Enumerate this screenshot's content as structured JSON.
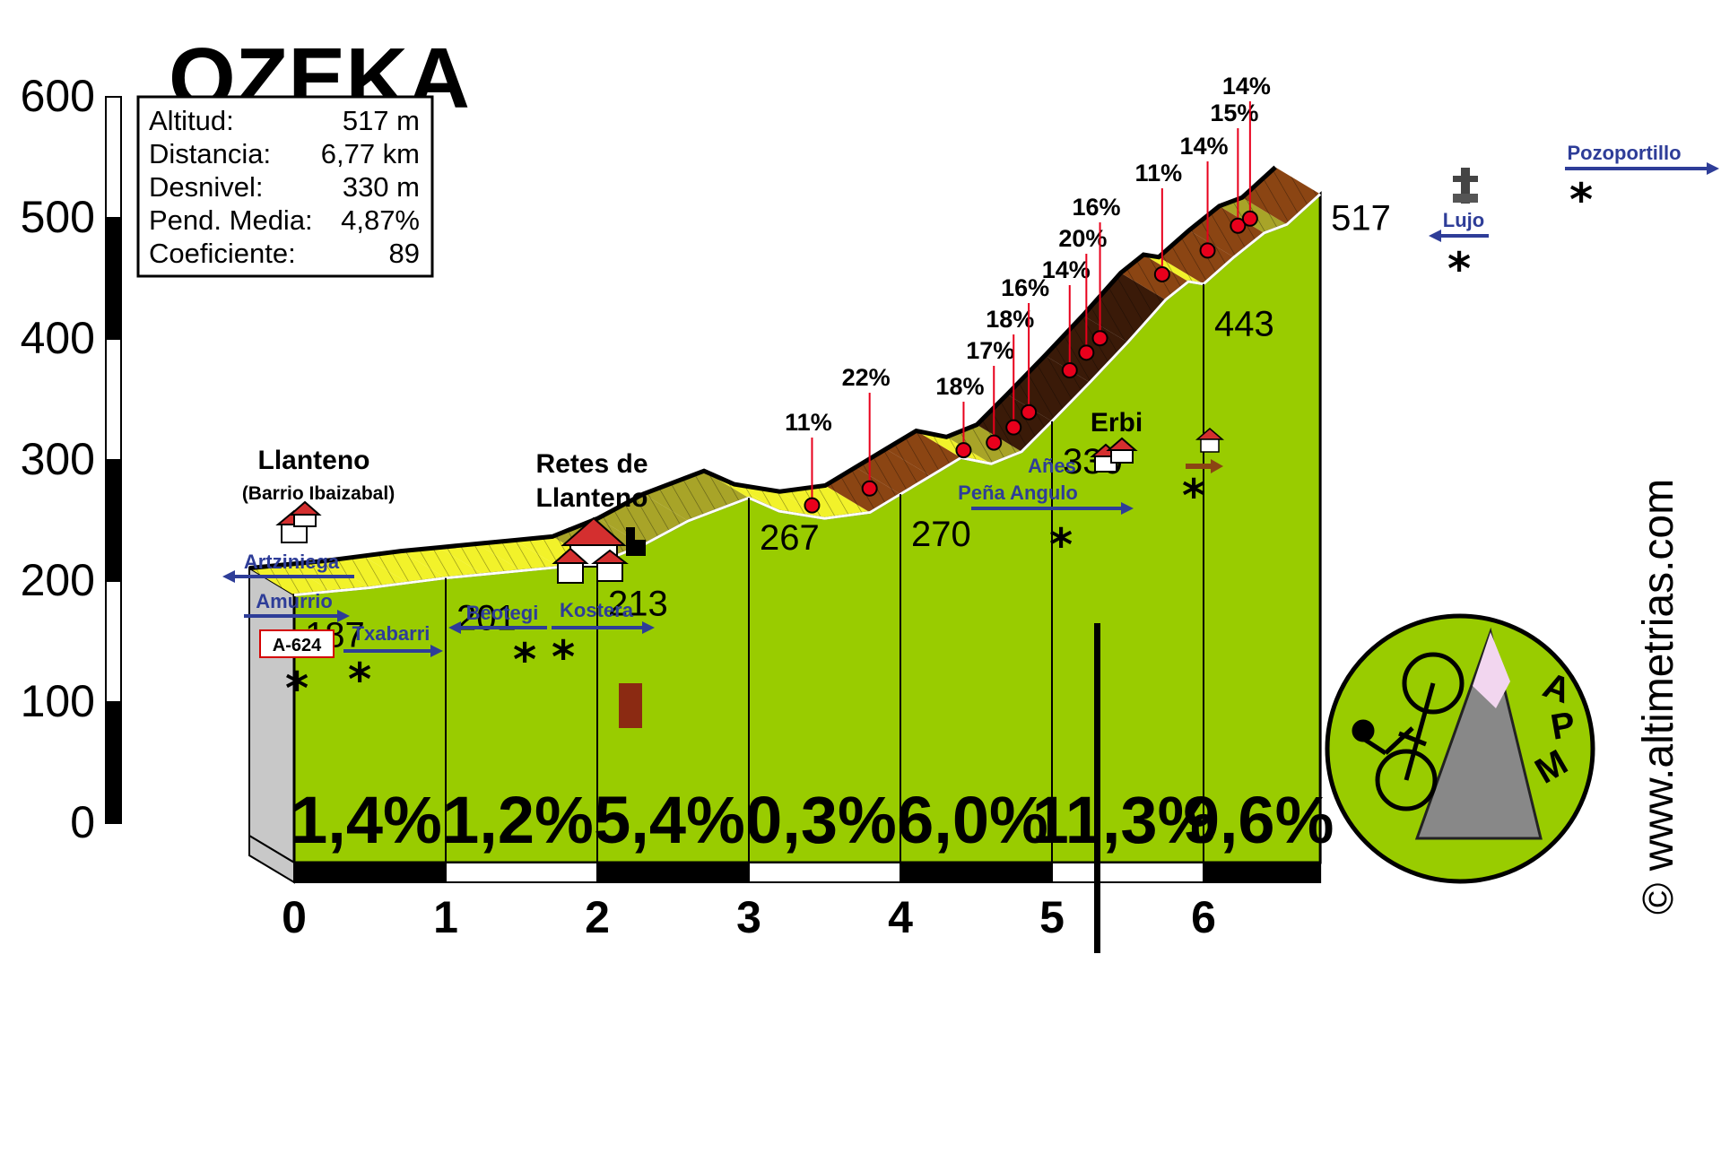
{
  "chart_data": {
    "type": "area",
    "title": "OZEKA",
    "stats": [
      {
        "label": "Altitud:",
        "value": "517 m"
      },
      {
        "label": "Distancia:",
        "value": "6,77 km"
      },
      {
        "label": "Desnivel:",
        "value": "330 m"
      },
      {
        "label": "Pend. Media:",
        "value": "4,87%"
      },
      {
        "label": "Coeficiente:",
        "value": "89"
      }
    ],
    "y_ticks": [
      "0",
      "100",
      "200",
      "300",
      "400",
      "500",
      "600"
    ],
    "x_ticks": [
      "0",
      "1",
      "2",
      "3",
      "4",
      "5",
      "6"
    ],
    "ylim": [
      0,
      600
    ],
    "xlim": [
      0,
      6.77
    ],
    "x_unit": "km",
    "y_unit": "m",
    "profile": [
      {
        "x": 0,
        "y": 187
      },
      {
        "x": 0.25,
        "y": 190
      },
      {
        "x": 0.5,
        "y": 193
      },
      {
        "x": 0.75,
        "y": 197
      },
      {
        "x": 1,
        "y": 201
      },
      {
        "x": 1.25,
        "y": 204
      },
      {
        "x": 1.5,
        "y": 207
      },
      {
        "x": 1.75,
        "y": 210
      },
      {
        "x": 2,
        "y": 213
      },
      {
        "x": 2.3,
        "y": 228
      },
      {
        "x": 2.6,
        "y": 248
      },
      {
        "x": 3,
        "y": 267
      },
      {
        "x": 3.2,
        "y": 256
      },
      {
        "x": 3.5,
        "y": 250
      },
      {
        "x": 3.8,
        "y": 255
      },
      {
        "x": 4,
        "y": 270
      },
      {
        "x": 4.2,
        "y": 285
      },
      {
        "x": 4.4,
        "y": 300
      },
      {
        "x": 4.6,
        "y": 295
      },
      {
        "x": 4.8,
        "y": 305
      },
      {
        "x": 5,
        "y": 330
      },
      {
        "x": 5.25,
        "y": 362
      },
      {
        "x": 5.5,
        "y": 395
      },
      {
        "x": 5.75,
        "y": 430
      },
      {
        "x": 5.9,
        "y": 445
      },
      {
        "x": 6,
        "y": 443
      },
      {
        "x": 6.2,
        "y": 465
      },
      {
        "x": 6.4,
        "y": 485
      },
      {
        "x": 6.55,
        "y": 492
      },
      {
        "x": 6.77,
        "y": 517
      }
    ],
    "segments": [
      {
        "from": 0,
        "to": 1,
        "gradient": "1,4%"
      },
      {
        "from": 1,
        "to": 2,
        "gradient": "1,2%"
      },
      {
        "from": 2,
        "to": 3,
        "gradient": "5,4%"
      },
      {
        "from": 3,
        "to": 4,
        "gradient": "0,3%"
      },
      {
        "from": 4,
        "to": 5,
        "gradient": "6,0%"
      },
      {
        "from": 5,
        "to": 6,
        "gradient": "11,3%"
      },
      {
        "from": 6,
        "to": 6.77,
        "gradient": "9,6%"
      }
    ],
    "elevation_labels": [
      {
        "x": 0,
        "text": "187"
      },
      {
        "x": 1,
        "text": "201"
      },
      {
        "x": 2,
        "text": "213"
      },
      {
        "x": 3,
        "text": "267"
      },
      {
        "x": 4,
        "text": "270"
      },
      {
        "x": 5,
        "text": "330"
      },
      {
        "x": 6,
        "text": "443"
      },
      {
        "x": 6.77,
        "text": "517"
      }
    ],
    "ramps": [
      {
        "x": 3.55,
        "text": "11%"
      },
      {
        "x": 3.93,
        "text": "22%"
      },
      {
        "x": 4.55,
        "text": "18%"
      },
      {
        "x": 4.75,
        "text": "17%"
      },
      {
        "x": 4.88,
        "text": "18%"
      },
      {
        "x": 4.98,
        "text": "16%"
      },
      {
        "x": 5.25,
        "text": "14%"
      },
      {
        "x": 5.36,
        "text": "20%"
      },
      {
        "x": 5.45,
        "text": "16%"
      },
      {
        "x": 5.86,
        "text": "11%"
      },
      {
        "x": 6.16,
        "text": "14%"
      },
      {
        "x": 6.36,
        "text": "15%"
      },
      {
        "x": 6.44,
        "text": "14%"
      }
    ],
    "places": [
      {
        "name": "Llanteno",
        "sub": "(Barrio Ibaizabal)"
      },
      {
        "name": "Retes de",
        "sub": "Llanteno"
      },
      {
        "name": "Erbi",
        "sub": ""
      }
    ],
    "roads": [
      {
        "name": "Artziniega",
        "dir": "left"
      },
      {
        "name": "Amurrio",
        "dir": "right"
      },
      {
        "name": "Txabarri",
        "dir": "right"
      },
      {
        "name": "Beotegi",
        "dir": "left"
      },
      {
        "name": "Kostera",
        "dir": "right"
      },
      {
        "name": "Añes",
        "dir": "none"
      },
      {
        "name": "Peña Angulo",
        "dir": "right"
      },
      {
        "name": "Lujo",
        "dir": "left"
      },
      {
        "name": "Pozoportillo",
        "dir": "right"
      }
    ],
    "road_code": "A-624",
    "logo": "APM",
    "logo_letters": [
      "A",
      "P",
      "M"
    ],
    "credit": "© www.altimetrias.com",
    "colors": {
      "profile_fill": "#99cc00",
      "face_light": "#f2f22a",
      "face_olive": "#a8a428",
      "face_brown": "#8b4513",
      "face_dark": "#3a1a08",
      "ramp_line": "#e8001c",
      "road_blue": "#2e3d98",
      "side_grey": "#c8c8c8"
    }
  }
}
